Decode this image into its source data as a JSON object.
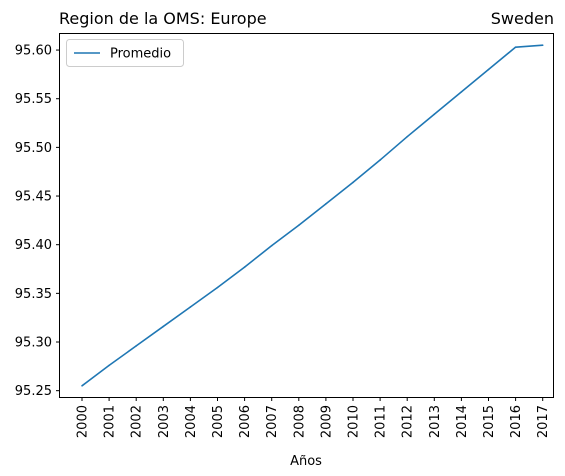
{
  "chart_data": {
    "type": "line",
    "title_left": "Region de la OMS: Europe",
    "title_right": "Sweden",
    "xlabel": "Años",
    "ylabel": "",
    "x": [
      "2000",
      "2001",
      "2002",
      "2003",
      "2004",
      "2005",
      "2006",
      "2007",
      "2008",
      "2009",
      "2010",
      "2011",
      "2012",
      "2013",
      "2014",
      "2015",
      "2016",
      "2017"
    ],
    "series": [
      {
        "name": "Promedio",
        "color": "#1f77b4",
        "values": [
          95.255,
          95.276,
          95.296,
          95.316,
          95.336,
          95.356,
          95.377,
          95.399,
          95.42,
          95.442,
          95.464,
          95.487,
          95.511,
          95.534,
          95.557,
          95.58,
          95.603,
          95.605
        ]
      }
    ],
    "ylim": [
      95.2435,
      95.6165
    ],
    "yticks": [
      95.25,
      95.3,
      95.35,
      95.4,
      95.45,
      95.5,
      95.55,
      95.6
    ],
    "ytick_labels": [
      "95.25",
      "95.30",
      "95.35",
      "95.40",
      "95.45",
      "95.50",
      "95.55",
      "95.60"
    ],
    "legend_position": "upper-left",
    "grid": false
  }
}
